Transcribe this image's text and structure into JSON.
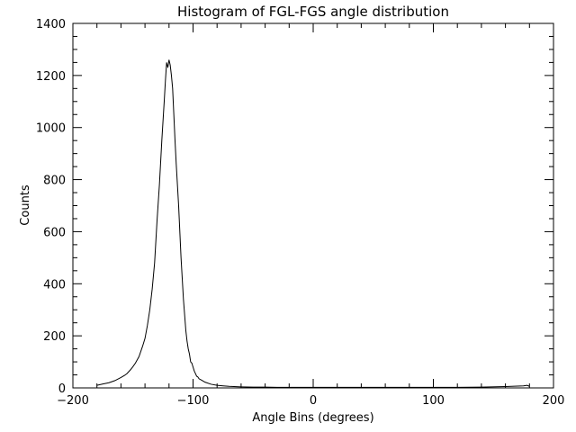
{
  "chart_data": {
    "type": "line",
    "title": "Histogram of FGL-FGS angle distribution",
    "xlabel": "Angle Bins (degrees)",
    "ylabel": "Counts",
    "xlim": [
      -200,
      200
    ],
    "ylim": [
      0,
      1400
    ],
    "xticks": [
      -200,
      -100,
      0,
      100,
      200
    ],
    "xtick_labels": [
      "−200",
      "−100",
      "0",
      "100",
      "200"
    ],
    "yticks": [
      0,
      200,
      400,
      600,
      800,
      1000,
      1200,
      1400
    ],
    "ytick_labels": [
      "0",
      "200",
      "400",
      "600",
      "800",
      "1000",
      "1200",
      "1400"
    ],
    "x_minor_step": 20,
    "y_minor_step": 50,
    "grid": false,
    "series": [
      {
        "name": "histogram",
        "x": [
          -180,
          -175,
          -170,
          -165,
          -160,
          -157,
          -155,
          -152,
          -150,
          -148,
          -145,
          -142,
          -140,
          -138,
          -136,
          -134,
          -132,
          -130,
          -128,
          -126,
          -124,
          -123,
          -122,
          -121,
          -120,
          -119,
          -118,
          -117,
          -116,
          -115,
          -114,
          -113,
          -112,
          -111,
          -110,
          -109,
          -108,
          -107,
          -106,
          -105,
          -104,
          -103,
          -102,
          -101,
          -100,
          -99,
          -98,
          -97,
          -96,
          -95,
          -93,
          -90,
          -85,
          -80,
          -75,
          -70,
          -60,
          -50,
          -40,
          -30,
          -20,
          -10,
          0,
          20,
          40,
          60,
          80,
          100,
          120,
          140,
          160,
          175,
          178,
          180
        ],
        "y": [
          10,
          15,
          20,
          28,
          40,
          48,
          55,
          70,
          82,
          95,
          120,
          160,
          190,
          240,
          300,
          380,
          480,
          640,
          780,
          950,
          1100,
          1180,
          1250,
          1230,
          1260,
          1240,
          1200,
          1150,
          1050,
          950,
          860,
          780,
          700,
          600,
          500,
          420,
          340,
          280,
          220,
          180,
          150,
          130,
          100,
          95,
          80,
          65,
          55,
          45,
          42,
          35,
          30,
          22,
          14,
          10,
          8,
          6,
          4,
          3,
          3,
          2,
          2,
          2,
          2,
          2,
          2,
          2,
          2,
          2,
          2,
          3,
          5,
          8,
          10,
          6
        ]
      }
    ]
  }
}
